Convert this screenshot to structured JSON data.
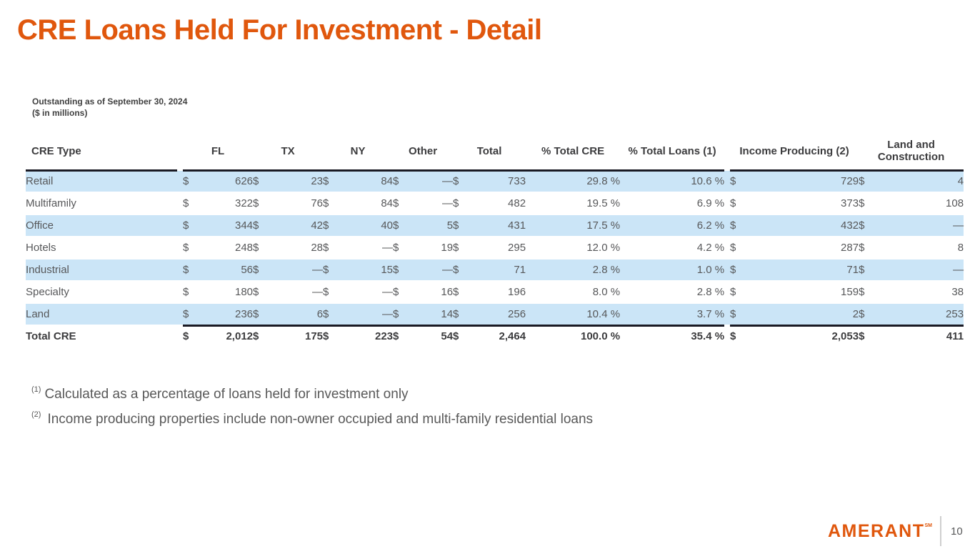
{
  "slide": {
    "title": "CRE Loans Held For Investment - Detail",
    "subtitle_line1": "Outstanding as of September 30, 2024",
    "subtitle_line2": "($ in millions)"
  },
  "table": {
    "currency_symbol": "$",
    "columns": {
      "cre_type": "CRE Type",
      "fl": "FL",
      "tx": "TX",
      "ny": "NY",
      "other": "Other",
      "total": "Total",
      "pct_total_cre": "% Total CRE",
      "pct_total_loans": "% Total Loans (1)",
      "income_producing": "Income Producing (2)",
      "land_and_construction": "Land and Construction"
    },
    "rows": [
      {
        "type": "Retail",
        "fl": "626",
        "tx": "23",
        "ny": "84",
        "other": "—",
        "total": "733",
        "pct_total_cre": "29.8 %",
        "pct_total_loans": "10.6 %",
        "income_producing": "729",
        "land_and_construction": "4",
        "shaded": true
      },
      {
        "type": "Multifamily",
        "fl": "322",
        "tx": "76",
        "ny": "84",
        "other": "—",
        "total": "482",
        "pct_total_cre": "19.5 %",
        "pct_total_loans": "6.9 %",
        "income_producing": "373",
        "land_and_construction": "108",
        "shaded": false
      },
      {
        "type": "Office",
        "fl": "344",
        "tx": "42",
        "ny": "40",
        "other": "5",
        "total": "431",
        "pct_total_cre": "17.5 %",
        "pct_total_loans": "6.2 %",
        "income_producing": "432",
        "land_and_construction": "—",
        "shaded": true
      },
      {
        "type": "Hotels",
        "fl": "248",
        "tx": "28",
        "ny": "—",
        "other": "19",
        "total": "295",
        "pct_total_cre": "12.0 %",
        "pct_total_loans": "4.2 %",
        "income_producing": "287",
        "land_and_construction": "8",
        "shaded": false
      },
      {
        "type": "Industrial",
        "fl": "56",
        "tx": "—",
        "ny": "15",
        "other": "—",
        "total": "71",
        "pct_total_cre": "2.8 %",
        "pct_total_loans": "1.0 %",
        "income_producing": "71",
        "land_and_construction": "—",
        "shaded": true
      },
      {
        "type": "Specialty",
        "fl": "180",
        "tx": "—",
        "ny": "—",
        "other": "16",
        "total": "196",
        "pct_total_cre": "8.0 %",
        "pct_total_loans": "2.8 %",
        "income_producing": "159",
        "land_and_construction": "38",
        "shaded": false
      },
      {
        "type": "Land",
        "fl": "236",
        "tx": "6",
        "ny": "—",
        "other": "14",
        "total": "256",
        "pct_total_cre": "10.4 %",
        "pct_total_loans": "3.7 %",
        "income_producing": "2",
        "land_and_construction": "253",
        "shaded": true
      }
    ],
    "total_row": {
      "type": "Total CRE",
      "fl": "2,012",
      "tx": "175",
      "ny": "223",
      "other": "54",
      "total": "2,464",
      "pct_total_cre": "100.0 %",
      "pct_total_loans": "35.4 %",
      "income_producing": "2,053",
      "land_and_construction": "411",
      "shaded": false
    }
  },
  "footnotes": [
    {
      "marker": "(1)",
      "text": "Calculated as a percentage of loans held for investment only"
    },
    {
      "marker": "(2)",
      "text": "Income producing properties include non-owner occupied and multi-family residential loans"
    }
  ],
  "footer": {
    "logo_text": "AMERANT",
    "logo_mark": "SM",
    "page_number": "10"
  },
  "colors": {
    "accent_orange": "#E0570D",
    "row_stripe_blue": "#CBE5F7",
    "rule_dark": "#1A1A24",
    "body_text_gray": "#57585A"
  }
}
